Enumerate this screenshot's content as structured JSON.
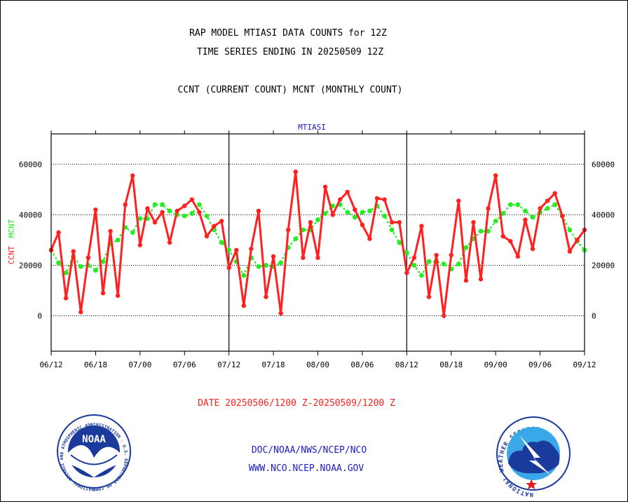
{
  "header": {
    "title_line1": "RAP MODEL MTIASI DATA COUNTS for 12Z",
    "title_line2": "TIME SERIES ENDING IN 20250509 12Z",
    "subtitle": "CCNT (CURRENT COUNT) MCNT (MONTHLY COUNT)"
  },
  "chart_label": "MTIASI",
  "ylabel_ccnt": "CCNT",
  "ylabel_mcnt": "MCNT",
  "date_range": "DATE 20250506/1200 Z-20250509/1200 Z",
  "footer": {
    "line1": "DOC/NOAA/NWS/NCEP/NCO",
    "line2": "WWW.NCO.NCEP.NOAA.GOV",
    "noaa_logo_text": "NOAA",
    "noaa_ring_text": "NATIONAL OCEANIC AND ATMOSPHERIC ADMINISTRATION · U.S. DEPARTMENT OF COMMERCE ·",
    "nws_ring_text": "NATIONAL WEATHER SERVICE"
  },
  "colors": {
    "ccnt": "#ff2020",
    "mcnt": "#22ee22",
    "title": "#000000",
    "date_range": "#ff2020",
    "footer": "#1a1acc",
    "chart_label": "#1a1acc"
  },
  "chart_data": {
    "type": "line",
    "title": "RAP MODEL MTIASI DATA COUNTS for 12Z",
    "xlabel": "",
    "ylabel": "CCNT  MCNT",
    "ylim": [
      -14000,
      72000
    ],
    "yticks": [
      0,
      20000,
      40000,
      60000
    ],
    "ytick_labels": [
      "0",
      "20000",
      "40000",
      "60000"
    ],
    "xticks": [
      "06/12",
      "06/18",
      "07/00",
      "07/06",
      "07/12",
      "07/18",
      "08/00",
      "08/06",
      "08/12",
      "08/18",
      "09/00",
      "09/06",
      "09/12"
    ],
    "x": [
      0,
      1,
      2,
      3,
      4,
      5,
      6,
      7,
      8,
      9,
      10,
      11,
      12,
      13,
      14,
      15,
      16,
      17,
      18,
      19,
      20,
      21,
      22,
      23,
      24,
      25,
      26,
      27,
      28,
      29,
      30,
      31,
      32,
      33,
      34,
      35,
      36,
      37,
      38,
      39,
      40,
      41,
      42,
      43,
      44,
      45,
      46,
      47,
      48,
      49,
      50,
      51,
      52,
      53,
      54,
      55,
      56,
      57,
      58,
      59,
      60,
      61,
      62,
      63,
      64,
      65,
      66,
      67,
      68,
      69,
      70,
      71,
      72
    ],
    "grid": true,
    "series": [
      {
        "name": "CCNT",
        "color": "#ff2020",
        "values": [
          26000,
          33000,
          7000,
          25500,
          1500,
          23000,
          42000,
          9000,
          33500,
          8000,
          44000,
          55500,
          28000,
          42500,
          37000,
          41000,
          29000,
          41500,
          43500,
          46000,
          41000,
          31500,
          35500,
          37500,
          19000,
          26000,
          4000,
          26500,
          41500,
          7500,
          23500,
          1000,
          34000,
          57000,
          23000,
          37000,
          23000,
          51000,
          40000,
          46000,
          49000,
          42000,
          36000,
          30500,
          46500,
          46000,
          37000,
          37000,
          17000,
          23000,
          35500,
          7500,
          24000,
          0,
          24000,
          45500,
          14000,
          37000,
          14500,
          42500,
          55500,
          31500,
          29500,
          23500,
          38000,
          26500,
          42500,
          45500,
          48500,
          39500,
          25500,
          30000,
          34000
        ]
      },
      {
        "name": "MCNT",
        "color": "#22ee22",
        "values": [
          26000,
          21000,
          17000,
          23500,
          19500,
          20000,
          18000,
          21500,
          28500,
          30000,
          35000,
          33000,
          38500,
          38500,
          44000,
          44000,
          41500,
          40000,
          39500,
          40500,
          44000,
          39500,
          34000,
          29000,
          26000,
          21500,
          16000,
          23000,
          19500,
          20000,
          19500,
          21000,
          27000,
          30500,
          34000,
          34000,
          38000,
          40500,
          43500,
          44000,
          41000,
          39000,
          41000,
          41500,
          43500,
          39500,
          34000,
          29000,
          25000,
          20000,
          16000,
          21500,
          21500,
          20500,
          18500,
          20500,
          27000,
          30500,
          33500,
          33500,
          37500,
          40500,
          44000,
          44000,
          41500,
          39000,
          41000,
          42500,
          44000,
          39500,
          34000,
          29500,
          26000
        ]
      }
    ]
  }
}
